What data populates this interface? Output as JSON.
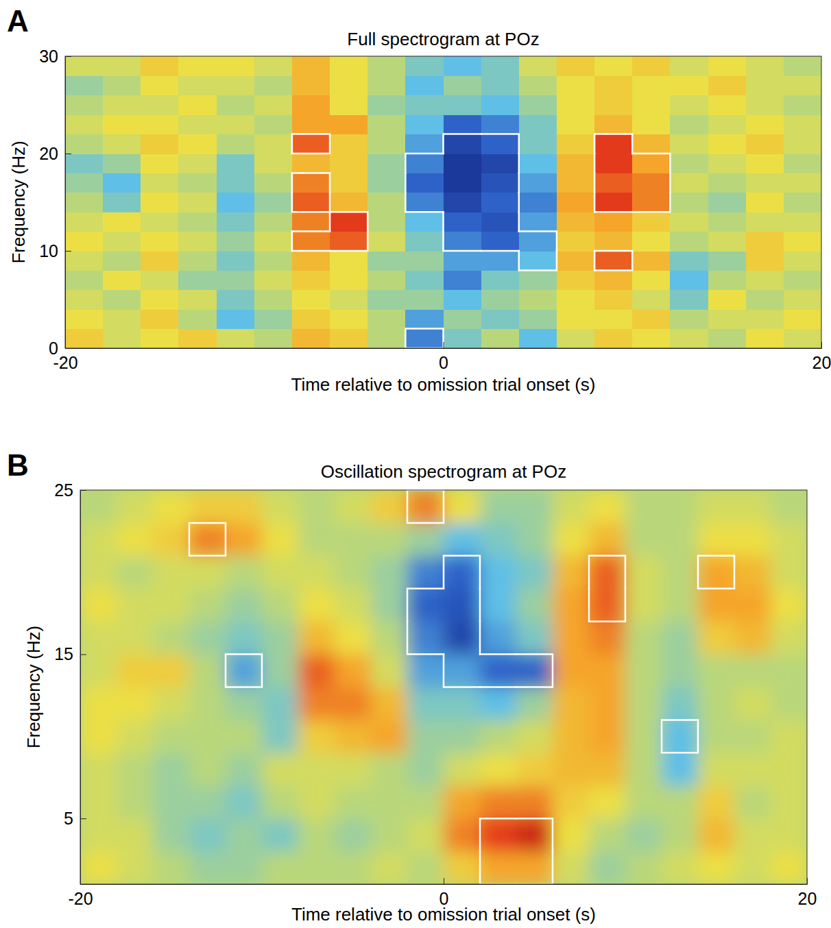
{
  "chart_data": [
    {
      "type": "heatmap",
      "panel_label": "A",
      "title": "Full spectrogram at POz",
      "x_label": "Time relative to omission trial onset (s)",
      "y_label": "Frequency (Hz)",
      "xlim": [
        -20,
        20
      ],
      "ylim": [
        0,
        30
      ],
      "xticks": [
        -20,
        0,
        20
      ],
      "yticks": [
        0,
        10,
        20,
        30
      ],
      "zlim": [
        -1,
        1
      ],
      "grid": false,
      "x": [
        -19,
        -17,
        -15,
        -13,
        -11,
        -9,
        -7,
        -5,
        -3,
        -1,
        1,
        3,
        5,
        7,
        9,
        11,
        13,
        15,
        17,
        19
      ],
      "y": [
        1,
        3,
        5,
        7,
        9,
        11,
        13,
        15,
        17,
        19,
        21,
        23,
        25,
        27,
        29
      ],
      "cells": [
        [
          0.3,
          0.1,
          0.2,
          0.3,
          0.1,
          0.0,
          0.4,
          0.3,
          0.0,
          -0.5,
          -0.2,
          0.0,
          -0.3,
          0.1,
          0.3,
          0.2,
          0.1,
          0.0,
          0.2,
          0.1
        ],
        [
          0.2,
          0.1,
          0.3,
          0.0,
          -0.3,
          -0.1,
          0.3,
          0.2,
          0.0,
          -0.4,
          -0.1,
          -0.2,
          -0.1,
          0.2,
          0.2,
          0.3,
          0.0,
          0.1,
          0.1,
          0.2
        ],
        [
          0.1,
          0.0,
          0.2,
          0.1,
          -0.2,
          0.0,
          0.2,
          0.1,
          -0.1,
          -0.1,
          -0.3,
          -0.1,
          0.0,
          0.2,
          0.3,
          0.1,
          -0.2,
          0.2,
          0.0,
          0.1
        ],
        [
          0.0,
          0.2,
          0.1,
          -0.1,
          -0.1,
          0.1,
          0.3,
          0.2,
          0.0,
          -0.2,
          -0.5,
          -0.2,
          -0.1,
          0.3,
          0.4,
          0.2,
          -0.3,
          0.0,
          0.1,
          0.0
        ],
        [
          0.1,
          0.0,
          0.3,
          0.0,
          -0.2,
          0.0,
          0.4,
          0.2,
          -0.1,
          -0.1,
          -0.4,
          -0.4,
          -0.3,
          0.4,
          0.7,
          0.4,
          -0.2,
          -0.1,
          0.3,
          0.1
        ],
        [
          0.2,
          0.1,
          0.2,
          0.1,
          -0.1,
          0.1,
          0.6,
          0.7,
          0.1,
          -0.2,
          -0.5,
          -0.6,
          -0.4,
          0.3,
          0.4,
          0.2,
          0.0,
          0.1,
          0.3,
          0.2
        ],
        [
          0.1,
          0.2,
          0.1,
          0.0,
          -0.2,
          0.0,
          0.6,
          0.8,
          0.0,
          -0.3,
          -0.6,
          -0.7,
          -0.4,
          0.4,
          0.5,
          0.3,
          0.1,
          0.0,
          0.1,
          0.1
        ],
        [
          0.0,
          -0.2,
          0.2,
          0.1,
          -0.3,
          -0.1,
          0.7,
          0.4,
          0.0,
          -0.5,
          -0.8,
          -0.6,
          -0.5,
          0.5,
          0.8,
          0.6,
          0.0,
          -0.1,
          0.2,
          0.0
        ],
        [
          -0.1,
          -0.3,
          0.1,
          0.0,
          -0.2,
          0.0,
          0.6,
          0.3,
          -0.1,
          -0.6,
          -0.9,
          -0.7,
          -0.4,
          0.4,
          0.7,
          0.6,
          0.1,
          0.0,
          0.1,
          0.1
        ],
        [
          -0.2,
          -0.1,
          0.2,
          0.1,
          -0.2,
          0.1,
          0.4,
          0.3,
          -0.1,
          -0.5,
          -0.9,
          -0.8,
          -0.3,
          0.4,
          0.8,
          0.5,
          0.0,
          0.1,
          0.2,
          0.0
        ],
        [
          0.0,
          0.1,
          0.3,
          0.2,
          0.0,
          0.1,
          0.7,
          0.3,
          0.0,
          -0.4,
          -0.8,
          -0.6,
          -0.2,
          0.3,
          0.8,
          0.4,
          0.1,
          0.2,
          0.3,
          0.1
        ],
        [
          0.1,
          0.2,
          0.2,
          0.1,
          0.1,
          0.0,
          0.5,
          0.5,
          0.0,
          -0.3,
          -0.6,
          -0.5,
          -0.2,
          0.2,
          0.4,
          0.2,
          0.0,
          0.1,
          0.2,
          0.1
        ],
        [
          0.0,
          0.1,
          0.1,
          0.2,
          0.0,
          0.1,
          0.5,
          0.2,
          -0.1,
          -0.2,
          -0.2,
          -0.3,
          -0.1,
          0.2,
          0.3,
          0.2,
          0.1,
          0.2,
          0.1,
          0.0
        ],
        [
          -0.1,
          0.0,
          0.2,
          0.1,
          0.1,
          0.0,
          0.4,
          0.2,
          0.0,
          -0.3,
          -0.1,
          -0.2,
          0.0,
          0.2,
          0.3,
          0.2,
          0.2,
          0.3,
          0.1,
          0.1
        ],
        [
          0.1,
          0.1,
          0.3,
          0.2,
          0.2,
          0.1,
          0.4,
          0.2,
          0.0,
          -0.2,
          -0.3,
          -0.2,
          0.1,
          0.3,
          0.2,
          0.3,
          0.1,
          0.2,
          0.1,
          0.0
        ]
      ],
      "significant": [
        [
          -7,
          11
        ],
        [
          -5,
          11
        ],
        [
          -5,
          13
        ],
        [
          -7,
          15
        ],
        [
          -7,
          17
        ],
        [
          -7,
          21
        ],
        [
          -1,
          15
        ],
        [
          -1,
          17
        ],
        [
          -1,
          19
        ],
        [
          1,
          11
        ],
        [
          1,
          13
        ],
        [
          1,
          15
        ],
        [
          1,
          17
        ],
        [
          1,
          19
        ],
        [
          1,
          21
        ],
        [
          3,
          11
        ],
        [
          3,
          13
        ],
        [
          3,
          15
        ],
        [
          3,
          17
        ],
        [
          3,
          19
        ],
        [
          3,
          21
        ],
        [
          5,
          9
        ],
        [
          5,
          11
        ],
        [
          9,
          9
        ],
        [
          9,
          15
        ],
        [
          9,
          17
        ],
        [
          9,
          19
        ],
        [
          9,
          21
        ],
        [
          11,
          15
        ],
        [
          11,
          17
        ],
        [
          11,
          19
        ],
        [
          -1,
          1
        ]
      ]
    },
    {
      "type": "heatmap",
      "panel_label": "B",
      "title": "Oscillation spectrogram at POz",
      "x_label": "Time relative to omission trial onset (s)",
      "y_label": "Frequency (Hz)",
      "xlim": [
        -20,
        20
      ],
      "ylim": [
        1,
        25
      ],
      "xticks": [
        -20,
        0,
        20
      ],
      "yticks": [
        5,
        15,
        25
      ],
      "zlim": [
        -1,
        1
      ],
      "grid": false,
      "x": [
        -19,
        -17,
        -15,
        -13,
        -11,
        -9,
        -7,
        -5,
        -3,
        -1,
        1,
        3,
        5,
        7,
        9,
        11,
        13,
        15,
        17,
        19
      ],
      "y": [
        2,
        4,
        6,
        8,
        10,
        12,
        14,
        16,
        18,
        20,
        22,
        24
      ],
      "cells": [
        [
          0.2,
          0.1,
          0.0,
          -0.1,
          -0.1,
          0.0,
          0.0,
          0.0,
          0.1,
          0.0,
          0.3,
          0.5,
          0.5,
          0.1,
          -0.1,
          0.0,
          0.1,
          0.2,
          0.1,
          0.2
        ],
        [
          0.1,
          0.1,
          -0.1,
          -0.2,
          -0.1,
          -0.2,
          0.0,
          -0.1,
          0.0,
          0.1,
          0.6,
          0.8,
          0.9,
          0.2,
          0.0,
          -0.1,
          0.0,
          0.4,
          0.1,
          0.1
        ],
        [
          0.1,
          0.0,
          -0.1,
          -0.1,
          -0.2,
          0.0,
          0.1,
          0.0,
          0.0,
          0.0,
          0.5,
          0.6,
          0.6,
          0.3,
          0.2,
          0.0,
          0.0,
          0.3,
          0.0,
          0.1
        ],
        [
          0.1,
          0.0,
          -0.1,
          0.0,
          -0.1,
          0.1,
          0.1,
          0.1,
          0.0,
          -0.1,
          0.1,
          0.2,
          0.3,
          0.4,
          0.4,
          0.0,
          -0.3,
          0.1,
          0.1,
          0.1
        ],
        [
          0.2,
          0.1,
          0.0,
          0.0,
          0.0,
          -0.2,
          0.3,
          0.4,
          0.5,
          -0.1,
          -0.1,
          0.0,
          0.1,
          0.4,
          0.5,
          0.0,
          -0.3,
          0.0,
          0.0,
          0.1
        ],
        [
          0.2,
          0.2,
          0.1,
          0.0,
          -0.1,
          -0.2,
          0.6,
          0.6,
          0.4,
          -0.2,
          -0.2,
          -0.3,
          -0.1,
          0.4,
          0.5,
          0.0,
          -0.2,
          0.0,
          0.1,
          0.0
        ],
        [
          0.1,
          0.3,
          0.3,
          0.0,
          -0.4,
          -0.1,
          0.7,
          0.5,
          0.1,
          -0.4,
          -0.4,
          -0.6,
          -0.6,
          0.5,
          0.5,
          0.0,
          -0.1,
          0.0,
          0.0,
          0.0
        ],
        [
          0.1,
          0.1,
          0.0,
          -0.1,
          -0.2,
          -0.1,
          0.4,
          0.2,
          0.0,
          -0.5,
          -0.8,
          -0.4,
          -0.2,
          0.5,
          0.6,
          0.0,
          -0.1,
          0.3,
          0.4,
          0.1
        ],
        [
          0.2,
          0.1,
          0.1,
          0.0,
          -0.1,
          0.0,
          0.2,
          0.1,
          -0.1,
          -0.6,
          -0.7,
          -0.3,
          -0.1,
          0.5,
          0.7,
          0.1,
          0.0,
          0.5,
          0.5,
          0.2
        ],
        [
          0.1,
          0.0,
          0.1,
          0.1,
          0.0,
          0.1,
          0.1,
          0.0,
          -0.1,
          -0.5,
          -0.6,
          -0.3,
          -0.2,
          0.4,
          0.7,
          0.1,
          0.0,
          0.5,
          0.4,
          0.1
        ],
        [
          0.1,
          0.2,
          0.3,
          0.6,
          0.5,
          0.2,
          0.0,
          0.0,
          0.0,
          -0.1,
          -0.3,
          -0.2,
          -0.1,
          0.2,
          0.4,
          0.0,
          0.0,
          0.2,
          0.2,
          0.1
        ],
        [
          0.0,
          0.1,
          0.2,
          0.3,
          0.3,
          0.1,
          0.0,
          0.1,
          0.3,
          0.6,
          0.2,
          -0.1,
          -0.1,
          0.1,
          0.2,
          0.0,
          0.0,
          0.1,
          0.1,
          0.0
        ]
      ],
      "significant": [
        [
          3,
          2
        ],
        [
          3,
          4
        ],
        [
          5,
          2
        ],
        [
          5,
          4
        ],
        [
          -1,
          16
        ],
        [
          -1,
          18
        ],
        [
          1,
          14
        ],
        [
          1,
          16
        ],
        [
          1,
          18
        ],
        [
          1,
          20
        ],
        [
          3,
          14
        ],
        [
          5,
          14
        ],
        [
          9,
          18
        ],
        [
          9,
          20
        ],
        [
          -11,
          14
        ],
        [
          13,
          10
        ],
        [
          -13,
          22
        ],
        [
          -1,
          24
        ],
        [
          15,
          20
        ]
      ]
    }
  ]
}
